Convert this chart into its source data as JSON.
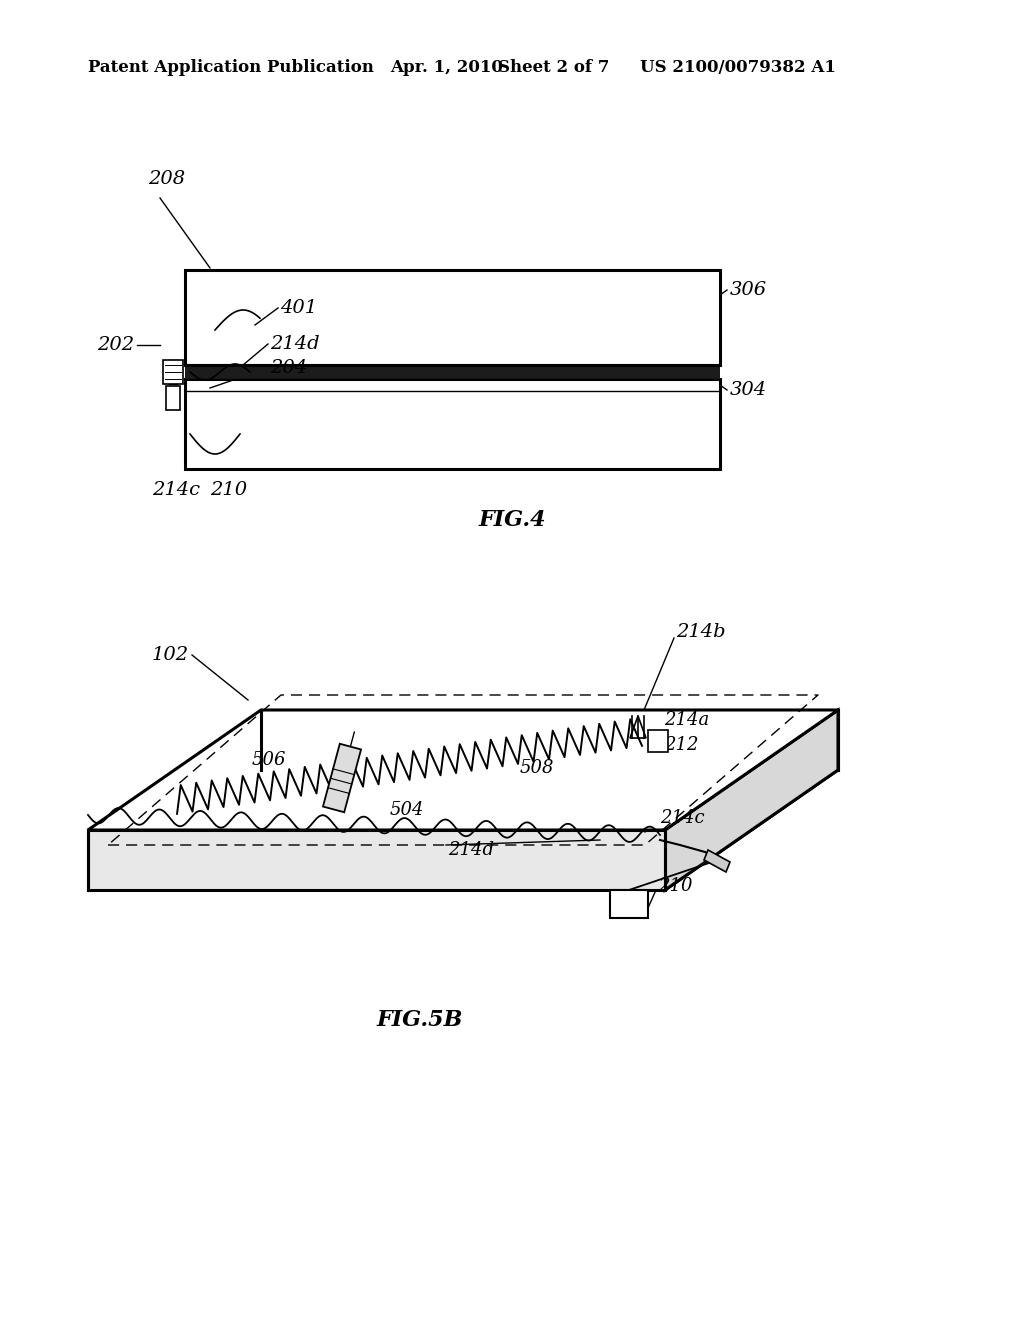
{
  "bg_color": "#ffffff",
  "header_text": "Patent Application Publication",
  "header_date": "Apr. 1, 2010",
  "header_sheet": "Sheet 2 of 7",
  "header_patent": "US 2100/0079382 A1",
  "fig4_title": "FIG.4",
  "fig5b_title": "FIG.5B"
}
